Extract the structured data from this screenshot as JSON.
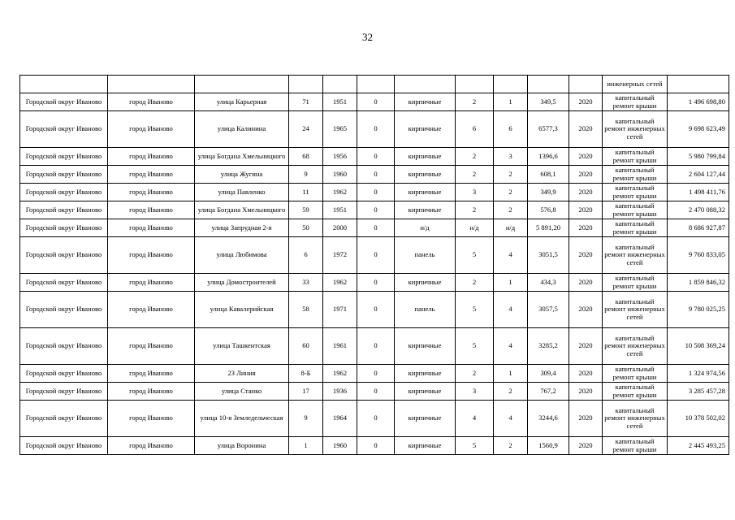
{
  "page_number": "32",
  "table": {
    "continuation_row": [
      "",
      "",
      "",
      "",
      "",
      "",
      "",
      "",
      "",
      "",
      "",
      "инженерных сетей",
      ""
    ],
    "rows": [
      [
        "Городской округ Иваново",
        "город Иваново",
        "улица Карьерная",
        "71",
        "1951",
        "0",
        "кирпичные",
        "2",
        "1",
        "349,5",
        "2020",
        "капитальный ремонт крыши",
        "1 496 698,80"
      ],
      [
        "Городской округ Иваново",
        "город Иваново",
        "улица Калинина",
        "24",
        "1965",
        "0",
        "кирпичные",
        "6",
        "6",
        "6577,3",
        "2020",
        "капитальный ремонт инженерных сетей",
        "9 698 623,49"
      ],
      [
        "Городской округ Иваново",
        "город Иваново",
        "улица Богдана Хмельницкого",
        "68",
        "1956",
        "0",
        "кирпичные",
        "2",
        "3",
        "1396,6",
        "2020",
        "капитальный ремонт крыши",
        "5 980 799,84"
      ],
      [
        "Городской округ Иваново",
        "город Иваново",
        "улица Жугина",
        "9",
        "1960",
        "0",
        "кирпичные",
        "2",
        "2",
        "608,1",
        "2020",
        "капитальный ремонт крыши",
        "2 604 127,44"
      ],
      [
        "Городской округ Иваново",
        "город Иваново",
        "улица Павленко",
        "11",
        "1962",
        "0",
        "кирпичные",
        "3",
        "2",
        "349,9",
        "2020",
        "капитальный ремонт крыши",
        "1 498 411,76"
      ],
      [
        "Городской округ Иваново",
        "город Иваново",
        "улица Богдана Хмельницкого",
        "59",
        "1951",
        "0",
        "кирпичные",
        "2",
        "2",
        "576,8",
        "2020",
        "капитальный ремонт крыши",
        "2 470 088,32"
      ],
      [
        "Городской округ Иваново",
        "город Иваново",
        "улица Запрудная 2-я",
        "50",
        "2000",
        "0",
        "н/д",
        "н/д",
        "н/д",
        "5 891,20",
        "2020",
        "капитальный ремонт крыши",
        "8 686 927,87"
      ],
      [
        "Городской округ Иваново",
        "город Иваново",
        "улица Любимова",
        "6",
        "1972",
        "0",
        "панель",
        "5",
        "4",
        "3051,5",
        "2020",
        "капитальный ремонт инженерных сетей",
        "9 760 833,05"
      ],
      [
        "Городской округ Иваново",
        "город Иваново",
        "улица Домостроителей",
        "33",
        "1962",
        "0",
        "кирпичные",
        "2",
        "1",
        "434,3",
        "2020",
        "капитальный ремонт крыши",
        "1 859 846,32"
      ],
      [
        "Городской округ Иваново",
        "город Иваново",
        "улица Кавалерийская",
        "58",
        "1971",
        "0",
        "панель",
        "5",
        "4",
        "3057,5",
        "2020",
        "капитальный ремонт инженерных сетей",
        "9 780 025,25"
      ],
      [
        "Городской округ Иваново",
        "город Иваново",
        "улица Ташкентская",
        "60",
        "1961",
        "0",
        "кирпичные",
        "5",
        "4",
        "3285,2",
        "2020",
        "капитальный ремонт инженерных сетей",
        "10 508 369,24"
      ],
      [
        "Городской округ Иваново",
        "город Иваново",
        "23 Линия",
        "8-Б",
        "1962",
        "0",
        "кирпичные",
        "2",
        "1",
        "309,4",
        "2020",
        "капитальный ремонт крыши",
        "1 324 974,56"
      ],
      [
        "Городской округ Иваново",
        "город Иваново",
        "улица Станко",
        "17",
        "1936",
        "0",
        "кирпичные",
        "3",
        "2",
        "767,2",
        "2020",
        "капитальный ремонт крыши",
        "3 285 457,28"
      ],
      [
        "Городской округ Иваново",
        "город Иваново",
        "улица 10-я Земледельческая",
        "9",
        "1964",
        "0",
        "кирпичные",
        "4",
        "4",
        "3244,6",
        "2020",
        "капитальный ремонт инженерных сетей",
        "10 378 502,02"
      ],
      [
        "Городской округ Иваново",
        "город Иваново",
        "улица Воронина",
        "1",
        "1960",
        "0",
        "кирпичные",
        "5",
        "2",
        "1560,9",
        "2020",
        "капитальный ремонт крыши",
        "2 445 493,25"
      ]
    ]
  }
}
